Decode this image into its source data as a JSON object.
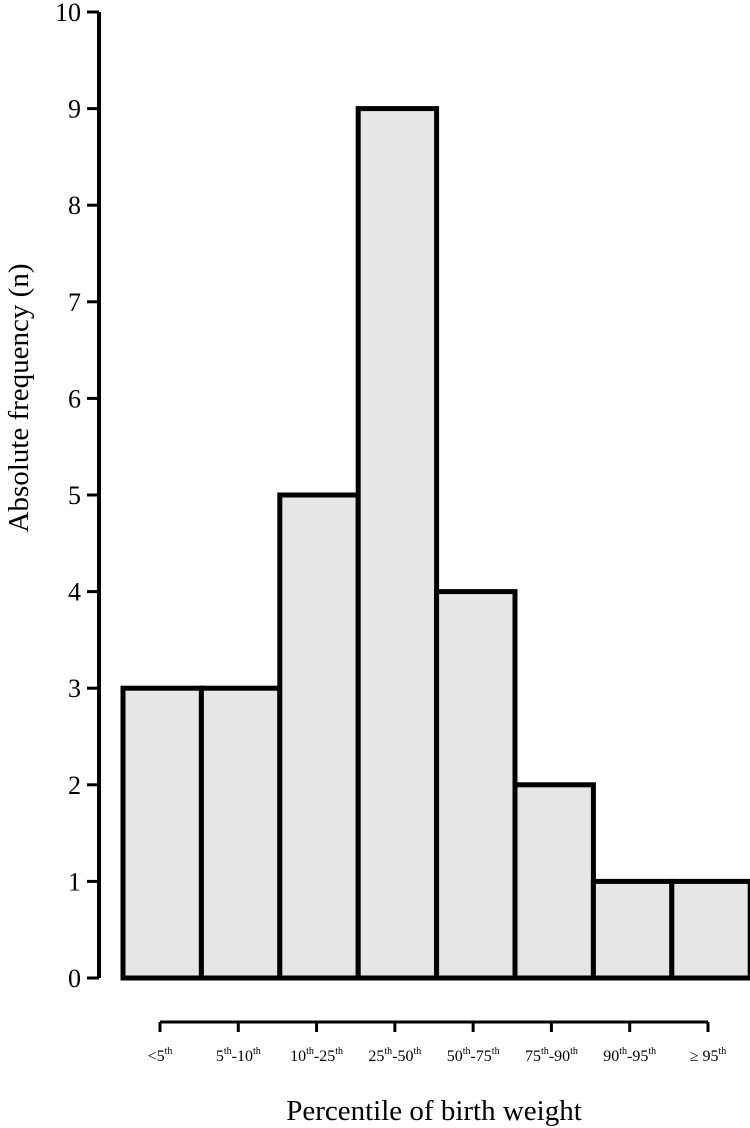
{
  "chart_data": {
    "type": "bar",
    "title": "",
    "xlabel": "Percentile of birth weight",
    "ylabel": "Absolute frequency (n)",
    "ylim": [
      0,
      10
    ],
    "yticks": [
      0,
      1,
      2,
      3,
      4,
      5,
      6,
      7,
      8,
      9,
      10
    ],
    "grid": false,
    "legend": "none",
    "categories": [
      [
        {
          "t": "<5"
        },
        {
          "t": "th",
          "sup": true
        }
      ],
      [
        {
          "t": "5"
        },
        {
          "t": "th",
          "sup": true
        },
        {
          "t": "-10"
        },
        {
          "t": "th",
          "sup": true
        }
      ],
      [
        {
          "t": "10"
        },
        {
          "t": "th",
          "sup": true
        },
        {
          "t": "-25"
        },
        {
          "t": "th",
          "sup": true
        }
      ],
      [
        {
          "t": "25"
        },
        {
          "t": "th",
          "sup": true
        },
        {
          "t": "-50"
        },
        {
          "t": "th",
          "sup": true
        }
      ],
      [
        {
          "t": "50"
        },
        {
          "t": "th",
          "sup": true
        },
        {
          "t": "-75"
        },
        {
          "t": "th",
          "sup": true
        }
      ],
      [
        {
          "t": "75"
        },
        {
          "t": "th",
          "sup": true
        },
        {
          "t": "-90"
        },
        {
          "t": "th",
          "sup": true
        }
      ],
      [
        {
          "t": "90"
        },
        {
          "t": "th",
          "sup": true
        },
        {
          "t": "-95"
        },
        {
          "t": "th",
          "sup": true
        }
      ],
      [
        {
          "t": "≥ 95"
        },
        {
          "t": "th",
          "sup": true
        }
      ]
    ],
    "values": [
      3,
      3,
      5,
      9,
      4,
      2,
      1,
      1
    ],
    "bar_fill": "#e6e6e6",
    "bar_stroke": "#000000"
  }
}
